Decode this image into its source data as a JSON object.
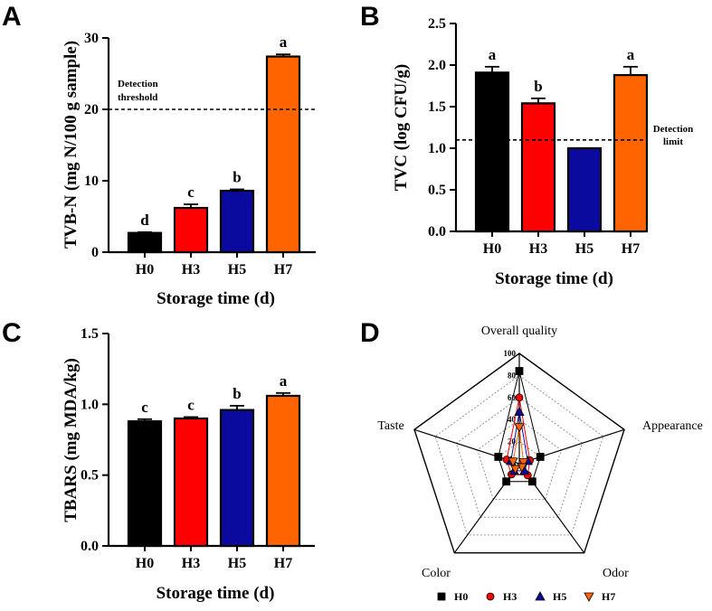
{
  "panels": [
    {
      "letter": "A",
      "chart_index": 0
    },
    {
      "letter": "B",
      "chart_index": 1
    },
    {
      "letter": "C",
      "chart_index": 2
    },
    {
      "letter": "D",
      "chart_index": 3
    }
  ],
  "colors": {
    "H0": "#000000",
    "H3": "#ff0000",
    "H5": "#0a0a9e",
    "H7": "#ff6400"
  },
  "chart_data": [
    {
      "type": "bar",
      "categories": [
        "H0",
        "H3",
        "H5",
        "H7"
      ],
      "values": [
        2.7,
        6.2,
        8.6,
        27.4
      ],
      "errors": [
        0.1,
        0.5,
        0.2,
        0.3
      ],
      "significance": [
        "d",
        "c",
        "b",
        "a"
      ],
      "xlabel": "Storage time (d)",
      "ylabel": "TVB-N (mg N/100 g sample)",
      "ylim": [
        0,
        30
      ],
      "yticks": [
        "0",
        "10",
        "20",
        "30"
      ],
      "reference_line": {
        "value": 20,
        "label_lines": [
          "Detection",
          "threshold"
        ],
        "placement": "left"
      },
      "grid": false
    },
    {
      "type": "bar",
      "categories": [
        "H0",
        "H3",
        "H5",
        "H7"
      ],
      "values": [
        1.91,
        1.54,
        1.0,
        1.88
      ],
      "errors": [
        0.07,
        0.06,
        0.0,
        0.1
      ],
      "significance": [
        "a",
        "b",
        "",
        "a"
      ],
      "xlabel": "Storage time (d)",
      "ylabel": "TVC (log CFU/g)",
      "ylim": [
        0,
        2.5
      ],
      "yticks": [
        "0.0",
        "0.5",
        "1.0",
        "1.5",
        "2.0",
        "2.5"
      ],
      "reference_line": {
        "value": 1.1,
        "label_lines": [
          "Detection",
          "limit"
        ],
        "placement": "right"
      },
      "grid": false
    },
    {
      "type": "bar",
      "categories": [
        "H0",
        "H3",
        "H5",
        "H7"
      ],
      "values": [
        0.88,
        0.9,
        0.96,
        1.06
      ],
      "errors": [
        0.015,
        0.01,
        0.03,
        0.02
      ],
      "significance": [
        "c",
        "c",
        "b",
        "a"
      ],
      "xlabel": "Storage time (d)",
      "ylabel": "TBARS (mg MDA/kg)",
      "ylim": [
        0,
        1.5
      ],
      "yticks": [
        "0.0",
        "0.5",
        "1.0",
        "1.5"
      ],
      "grid": false
    },
    {
      "type": "radar",
      "axes": [
        "Overall quality",
        "Appearance",
        "Odor",
        "Color",
        "Taste"
      ],
      "rmax": 100,
      "rticks": [
        "0",
        "20",
        "40",
        "60",
        "80",
        "100"
      ],
      "series": [
        {
          "name": "H0",
          "marker": "square",
          "values": [
            84,
            20,
            20,
            20,
            20
          ]
        },
        {
          "name": "H3",
          "marker": "circle",
          "values": [
            60,
            10,
            13,
            12,
            12
          ]
        },
        {
          "name": "H5",
          "marker": "triangle-up",
          "values": [
            47,
            8,
            8,
            8,
            8
          ]
        },
        {
          "name": "H7",
          "marker": "triangle-down",
          "values": [
            33,
            4,
            4,
            6,
            6
          ]
        }
      ],
      "legend": "bottom"
    }
  ]
}
